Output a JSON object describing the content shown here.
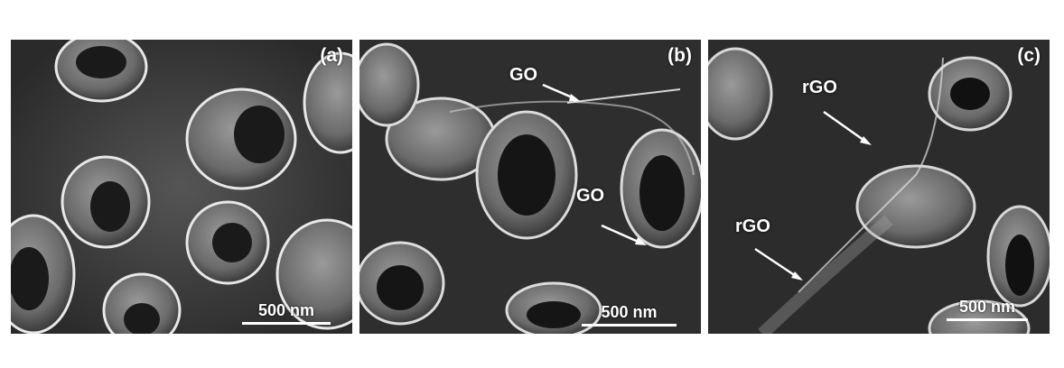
{
  "panels": [
    {
      "label": "(a)",
      "scale": "500 nm",
      "annotations": []
    },
    {
      "label": "(b)",
      "scale": "500 nm",
      "annotations": [
        "GO",
        "GO"
      ]
    },
    {
      "label": "(c)",
      "scale": "500 nm",
      "annotations": [
        "rGO",
        "rGO"
      ]
    }
  ]
}
